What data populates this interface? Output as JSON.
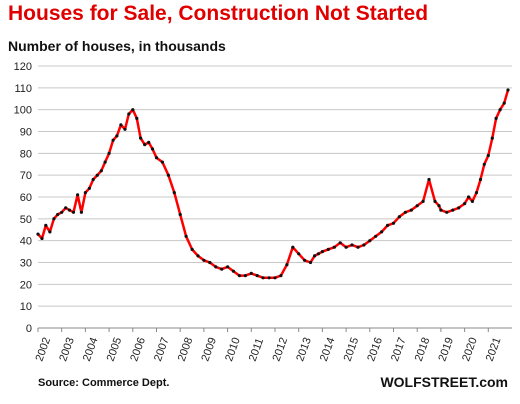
{
  "chart_data": {
    "type": "line",
    "title": "Houses for Sale, Construction  Not Started",
    "subtitle": "Number of houses, in thousands",
    "source": "Source: Commerce Dept.",
    "watermark": "WOLFSTREET.com",
    "ylim": [
      0,
      120
    ],
    "yticks": [
      0,
      10,
      20,
      30,
      40,
      50,
      60,
      70,
      80,
      90,
      100,
      110,
      120
    ],
    "xlim": [
      2002,
      2022
    ],
    "xticks": [
      "2002",
      "2003",
      "2004",
      "2005",
      "2006",
      "2007",
      "2008",
      "2009",
      "2010",
      "2011",
      "2012",
      "2013",
      "2014",
      "2015",
      "2016",
      "2017",
      "2018",
      "2019",
      "2020",
      "2021"
    ],
    "grid": true,
    "line_color": "#ff0000",
    "marker_color": "#111111",
    "series": [
      {
        "x": [
          2002.0,
          2002.17,
          2002.33,
          2002.5,
          2002.67,
          2002.83,
          2003.0,
          2003.17,
          2003.33,
          2003.5,
          2003.67,
          2003.83,
          2004.0,
          2004.17,
          2004.33,
          2004.5,
          2004.67,
          2004.83,
          2005.0,
          2005.17,
          2005.33,
          2005.5,
          2005.67,
          2005.83,
          2006.0,
          2006.17,
          2006.33,
          2006.5,
          2006.67,
          2006.83,
          2007.0,
          2007.25,
          2007.5,
          2007.75,
          2008.0,
          2008.25,
          2008.5,
          2008.75,
          2009.0,
          2009.25,
          2009.5,
          2009.75,
          2010.0,
          2010.25,
          2010.5,
          2010.75,
          2011.0,
          2011.25,
          2011.5,
          2011.75,
          2012.0,
          2012.25,
          2012.5,
          2012.75,
          2013.0,
          2013.25,
          2013.5,
          2013.67,
          2013.83,
          2014.0,
          2014.25,
          2014.5,
          2014.75,
          2015.0,
          2015.25,
          2015.5,
          2015.75,
          2016.0,
          2016.25,
          2016.5,
          2016.75,
          2017.0,
          2017.25,
          2017.5,
          2017.75,
          2018.0,
          2018.25,
          2018.5,
          2018.75,
          2018.92,
          2019.0,
          2019.25,
          2019.5,
          2019.75,
          2020.0,
          2020.17,
          2020.33,
          2020.5,
          2020.67,
          2020.83,
          2021.0,
          2021.17,
          2021.33,
          2021.5,
          2021.67,
          2021.83
        ],
        "y": [
          43,
          41,
          47,
          44,
          50,
          52,
          53,
          55,
          54,
          53,
          61,
          53,
          62,
          64,
          68,
          70,
          72,
          76,
          80,
          86,
          88,
          93,
          91,
          98,
          100,
          96,
          87,
          84,
          85,
          82,
          78,
          76,
          70,
          62,
          52,
          42,
          36,
          33,
          31,
          30,
          28,
          27,
          28,
          26,
          24,
          24,
          25,
          24,
          23,
          23,
          23,
          24,
          29,
          37,
          34,
          31,
          30,
          33,
          34,
          35,
          36,
          37,
          39,
          37,
          38,
          37,
          38,
          40,
          42,
          44,
          47,
          48,
          51,
          53,
          54,
          56,
          58,
          68,
          58,
          56,
          54,
          53,
          54,
          55,
          57,
          60,
          58,
          62,
          68,
          75,
          79,
          87,
          96,
          100,
          103,
          109
        ]
      }
    ]
  }
}
